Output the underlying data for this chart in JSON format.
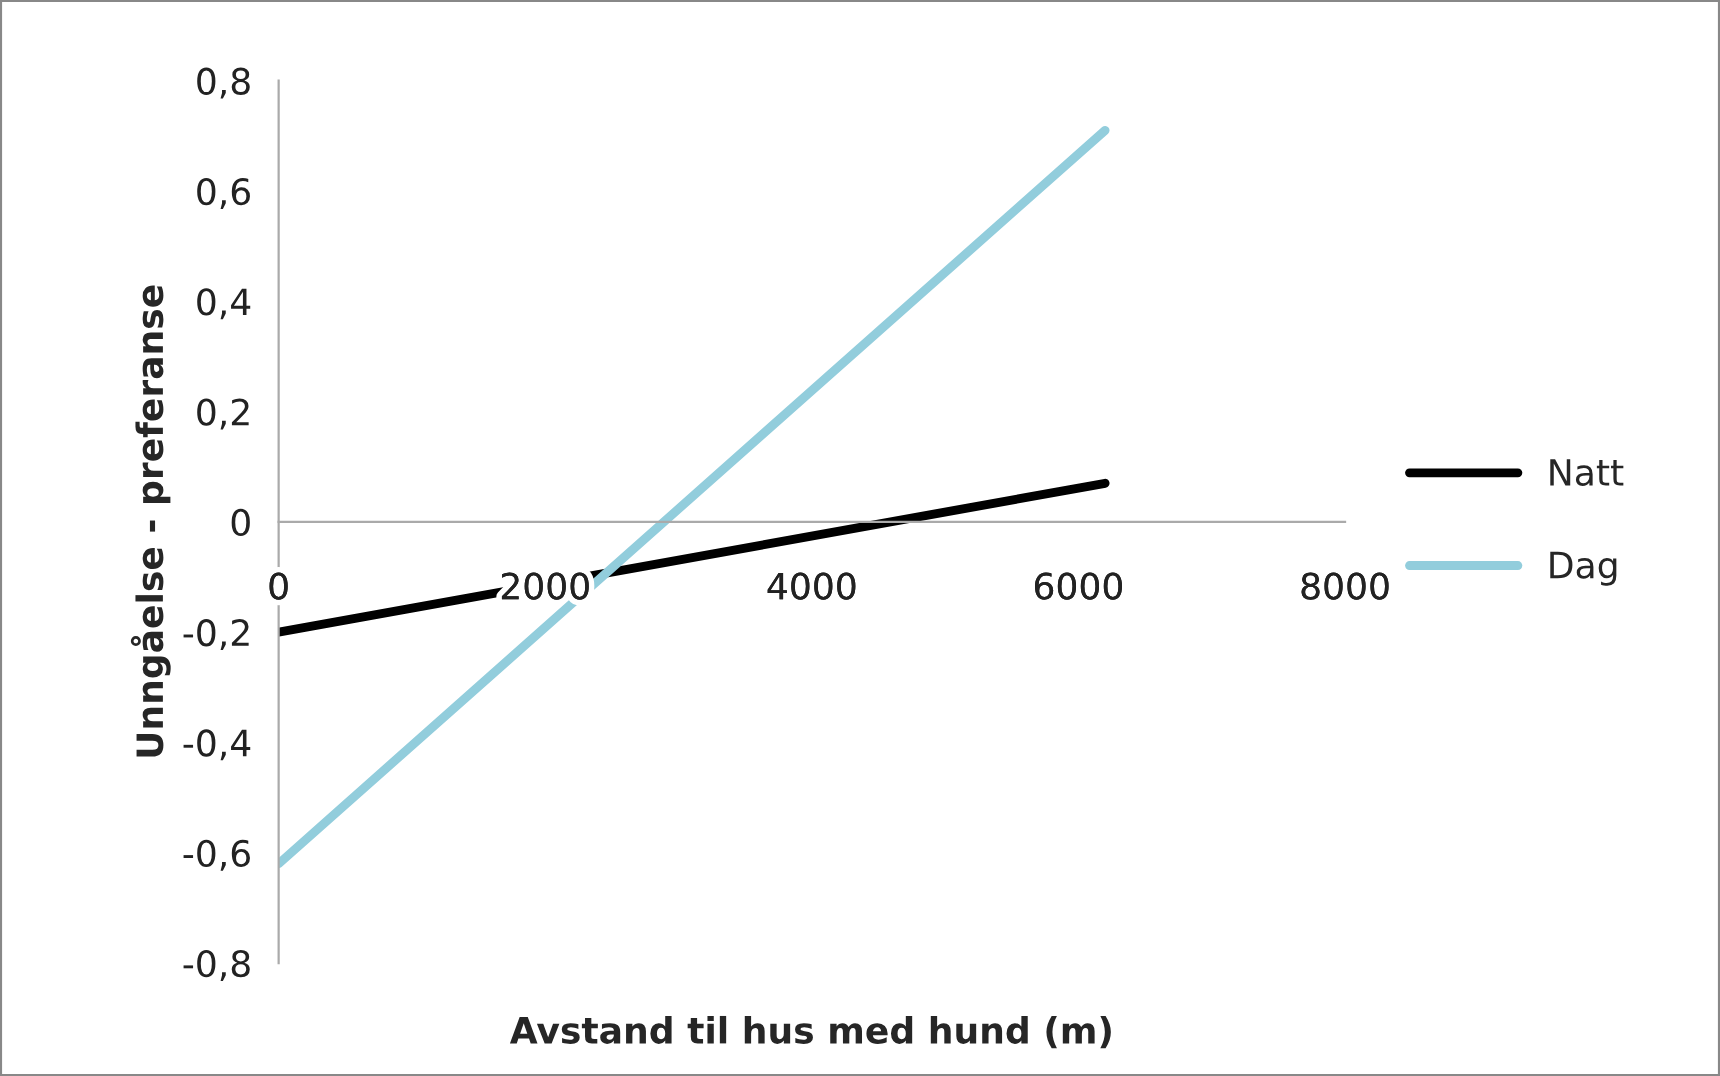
{
  "chart_data": {
    "type": "line",
    "xlabel": "Avstand til hus med hund (m)",
    "ylabel": "Unngåelse - preferanse",
    "x": [
      0,
      6200
    ],
    "series": [
      {
        "name": "Natt",
        "color": "#000000",
        "values": [
          -0.2,
          0.07
        ]
      },
      {
        "name": "Dag",
        "color": "#92cddc",
        "values": [
          -0.62,
          0.71
        ]
      }
    ],
    "xlim": [
      0,
      8000
    ],
    "xticks": [
      0,
      2000,
      4000,
      6000,
      8000
    ],
    "ylim": [
      -0.8,
      0.8
    ],
    "yticks": [
      {
        "value": -0.8,
        "label": "-0,8"
      },
      {
        "value": -0.6,
        "label": "-0,6"
      },
      {
        "value": -0.4,
        "label": "-0,4"
      },
      {
        "value": -0.2,
        "label": "-0,2"
      },
      {
        "value": 0,
        "label": "0"
      },
      {
        "value": 0.2,
        "label": "0,2"
      },
      {
        "value": 0.4,
        "label": "0,4"
      },
      {
        "value": 0.6,
        "label": "0,6"
      },
      {
        "value": 0.8,
        "label": "0,8"
      }
    ],
    "grid": false,
    "legend": "right",
    "marker": "none",
    "line_style": "solid"
  }
}
